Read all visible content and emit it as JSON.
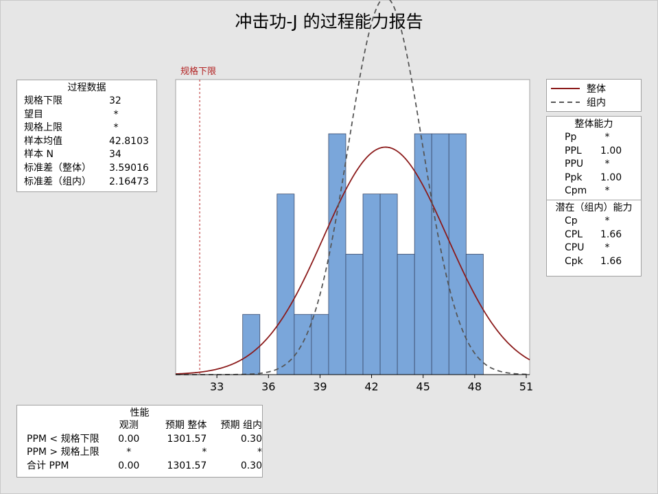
{
  "title": "冲击功-J 的过程能力报告",
  "process_data": {
    "header": "过程数据",
    "rows": [
      {
        "label": "规格下限",
        "value": "32"
      },
      {
        "label": "望目",
        "value": "*"
      },
      {
        "label": "规格上限",
        "value": "*"
      },
      {
        "label": "样本均值",
        "value": "42.8103"
      },
      {
        "label": "样本 N",
        "value": "34"
      },
      {
        "label": "标准差（整体）",
        "value": "3.59016"
      },
      {
        "label": "标准差（组内）",
        "value": "2.16473"
      }
    ]
  },
  "legend": {
    "items": [
      {
        "label": "整体",
        "style": "solid",
        "color": "#8b1a1a"
      },
      {
        "label": "组内",
        "style": "dashed",
        "color": "#555555"
      }
    ]
  },
  "overall_capability": {
    "header": "整体能力",
    "rows": [
      {
        "label": "Pp",
        "value": "*"
      },
      {
        "label": "PPL",
        "value": "1.00"
      },
      {
        "label": "PPU",
        "value": "*"
      },
      {
        "label": "Ppk",
        "value": "1.00"
      },
      {
        "label": "Cpm",
        "value": "*"
      }
    ]
  },
  "potential_capability": {
    "header": "潜在（组内）能力",
    "rows": [
      {
        "label": "Cp",
        "value": "*"
      },
      {
        "label": "CPL",
        "value": "1.66"
      },
      {
        "label": "CPU",
        "value": "*"
      },
      {
        "label": "Cpk",
        "value": "1.66"
      }
    ]
  },
  "performance": {
    "header": "性能",
    "col_headers": [
      "观测",
      "预期 整体",
      "预期 组内"
    ],
    "rows": [
      {
        "label": "PPM < 规格下限",
        "values": [
          "0.00",
          "1301.57",
          "0.30"
        ]
      },
      {
        "label": "PPM > 规格上限",
        "values": [
          "*",
          "*",
          "*"
        ]
      },
      {
        "label": "合计 PPM",
        "values": [
          "0.00",
          "1301.57",
          "0.30"
        ]
      }
    ]
  },
  "chart_data": {
    "type": "bar",
    "subtype": "histogram",
    "bin_width": 1,
    "bins": [
      {
        "start": 34.5,
        "end": 35.5,
        "count": 1
      },
      {
        "start": 35.5,
        "end": 36.5,
        "count": 0
      },
      {
        "start": 36.5,
        "end": 37.5,
        "count": 3
      },
      {
        "start": 37.5,
        "end": 38.5,
        "count": 1
      },
      {
        "start": 38.5,
        "end": 39.5,
        "count": 1
      },
      {
        "start": 39.5,
        "end": 40.5,
        "count": 4
      },
      {
        "start": 40.5,
        "end": 41.5,
        "count": 2
      },
      {
        "start": 41.5,
        "end": 42.5,
        "count": 3
      },
      {
        "start": 42.5,
        "end": 43.5,
        "count": 3
      },
      {
        "start": 43.5,
        "end": 44.5,
        "count": 2
      },
      {
        "start": 44.5,
        "end": 45.5,
        "count": 4
      },
      {
        "start": 45.5,
        "end": 46.5,
        "count": 4
      },
      {
        "start": 46.5,
        "end": 47.5,
        "count": 4
      },
      {
        "start": 47.5,
        "end": 48.5,
        "count": 2
      }
    ],
    "xlim": [
      30.6,
      51.2
    ],
    "xticks": [
      33,
      36,
      39,
      42,
      45,
      48,
      51
    ],
    "ylim": [
      0,
      4.9
    ],
    "bar_color": "#7aa6da",
    "bar_edge": "#3a4a6a",
    "spec_lines": [
      {
        "label": "规格下限",
        "value": 32,
        "color": "#b22222"
      }
    ],
    "curves": [
      {
        "name": "整体",
        "dist": "normal",
        "mean": 42.8103,
        "sd": 3.59016,
        "style": "solid",
        "color": "#8b1a1a"
      },
      {
        "name": "组内",
        "dist": "normal",
        "mean": 42.8103,
        "sd": 2.16473,
        "style": "dashed",
        "color": "#555555"
      }
    ],
    "grid": false
  }
}
